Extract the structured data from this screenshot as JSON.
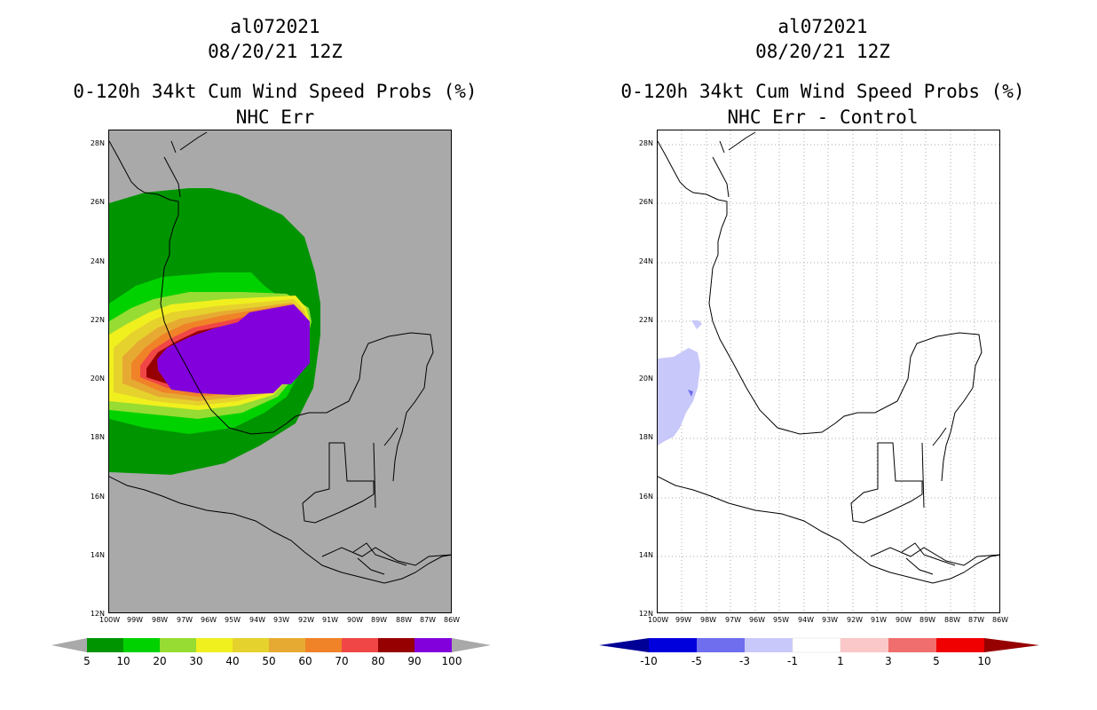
{
  "left": {
    "storm_id": "al072021",
    "date": "08/20/21 12Z",
    "product": "0-120h 34kt Cum Wind Speed Probs (%)",
    "subtitle": "NHC Err",
    "background": "#a9a9a9",
    "legend": {
      "levels": [
        "5",
        "10",
        "20",
        "30",
        "40",
        "50",
        "60",
        "70",
        "80",
        "90",
        "100"
      ],
      "colors": [
        "#009400",
        "#00d200",
        "#96dc32",
        "#f0f01e",
        "#e6d22d",
        "#e6aa32",
        "#f08228",
        "#f04646",
        "#960000",
        "#8200dc"
      ]
    }
  },
  "right": {
    "storm_id": "al072021",
    "date": "08/20/21 12Z",
    "product": "0-120h 34kt Cum Wind Speed Probs (%)",
    "subtitle": "NHC Err - Control",
    "background": "#ffffff",
    "legend": {
      "levels": [
        "-10",
        "-5",
        "-3",
        "-1",
        "1",
        "3",
        "5",
        "10"
      ],
      "colors": [
        "#0000dc",
        "#6e6eee",
        "#c8c8fa",
        "#ffffff",
        "#fac8c8",
        "#f06e6e",
        "#f00000"
      ]
    }
  },
  "axes": {
    "lat_labels": [
      "28N",
      "26N",
      "24N",
      "22N",
      "20N",
      "18N",
      "16N",
      "14N",
      "12N"
    ],
    "lon_labels": [
      "100W",
      "99W",
      "98W",
      "97W",
      "96W",
      "95W",
      "94W",
      "93W",
      "92W",
      "91W",
      "90W",
      "89W",
      "88W",
      "87W",
      "86W"
    ]
  }
}
